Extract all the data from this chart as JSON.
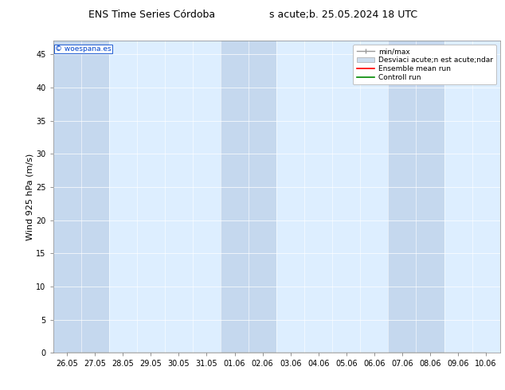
{
  "title_left": "ENS Time Series Córdoba",
  "title_right": "s acute;b. 25.05.2024 18 UTC",
  "ylabel": "Wind 925 hPa (m/s)",
  "watermark": "© woespana.es",
  "x_labels": [
    "26.05",
    "27.05",
    "28.05",
    "29.05",
    "30.05",
    "31.05",
    "01.06",
    "02.06",
    "03.06",
    "04.06",
    "05.06",
    "06.06",
    "07.06",
    "08.06",
    "09.06",
    "10.06"
  ],
  "ylim": [
    0,
    47
  ],
  "yticks": [
    0,
    5,
    10,
    15,
    20,
    25,
    30,
    35,
    40,
    45
  ],
  "background_color": "#ffffff",
  "plot_bg_color": "#ddeeff",
  "col_color_dark": "#c5d8ee",
  "col_color_light": "#ddeeff",
  "mean_run_color": "#ff0000",
  "control_run_color": "#008800",
  "title_fontsize": 9,
  "tick_fontsize": 7,
  "ylabel_fontsize": 8,
  "fig_width": 6.34,
  "fig_height": 4.9,
  "dpi": 100
}
